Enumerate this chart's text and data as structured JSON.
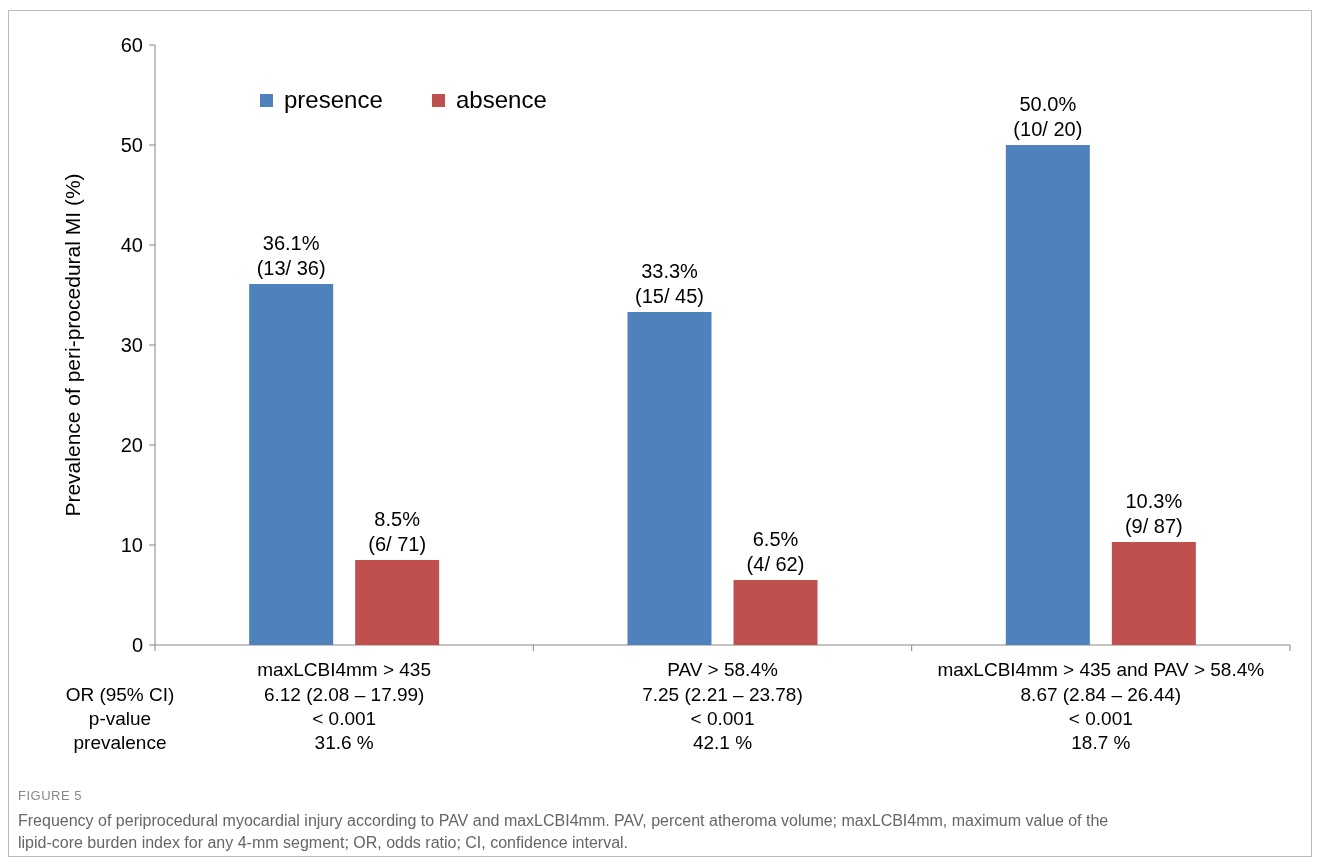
{
  "chart_data": {
    "type": "bar",
    "ylabel": "Prevalence of peri-procedural MI (%)",
    "categories": [
      "maxLCBI4mm > 435",
      "PAV > 58.4%",
      "maxLCBI4mm > 435 and PAV > 58.4%"
    ],
    "series": [
      {
        "name": "presence",
        "color": "#4f81bd",
        "values": [
          36.1,
          33.3,
          50.0
        ],
        "value_labels": [
          "36.1%\n(13/ 36)",
          "33.3%\n(15/ 45)",
          "50.0%\n(10/ 20)"
        ]
      },
      {
        "name": "absence",
        "color": "#c0504d",
        "values": [
          8.5,
          6.5,
          10.3
        ],
        "value_labels": [
          "8.5%\n(6/ 71)",
          "6.5%\n(4/ 62)",
          "10.3%\n(9/ 87)"
        ]
      }
    ],
    "ylim": [
      0,
      60
    ],
    "yticks": [
      0,
      10,
      20,
      30,
      40,
      50,
      60
    ],
    "grid": false,
    "legend": "top left",
    "annotations": [
      "OR (95% CI)",
      "6.12 (2.08 – 17.99)",
      "7.25 (2.21 – 23.78)",
      "8.67 (2.84 – 26.44)",
      "p-value",
      "< 0.001",
      "< 0.001",
      "< 0.001",
      "prevalence",
      "31.6 %",
      "42.1 %",
      "18.7 %",
      "FIGURE 5",
      "Frequency of periprocedural myocardial injury according to PAV and maxLCBI4mm. PAV, percent atheroma volume; maxLCBI4mm, maximum value of the lipid-core burden index for any 4-mm segment; OR, odds ratio; CI, confidence interval."
    ]
  }
}
